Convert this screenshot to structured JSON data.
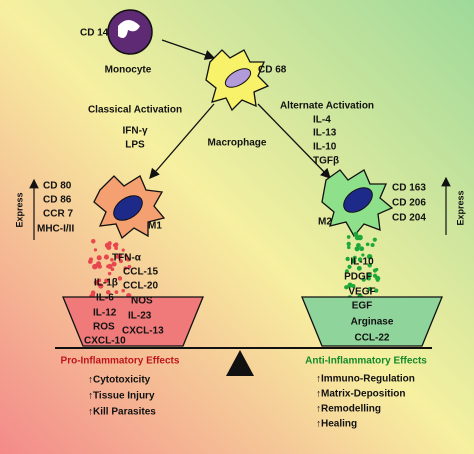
{
  "monocyte": {
    "marker": "CD 14",
    "label": "Monocyte"
  },
  "macrophage": {
    "marker": "CD 68",
    "label": "Macrophage"
  },
  "classical": {
    "title": "Classical Activation",
    "stimuli": [
      "IFN-γ",
      "LPS"
    ]
  },
  "alternate": {
    "title": "Alternate Activation",
    "stimuli": [
      "IL-4",
      "IL-13",
      "IL-10",
      "TGFβ"
    ]
  },
  "m1": {
    "label": "M1",
    "express": "Express",
    "markers": [
      "CD 80",
      "CD 86",
      "CCR 7",
      "MHC-I/II"
    ],
    "secreted": [
      "TFN-α",
      "CCL-15",
      "CCL-20",
      "IL-1β",
      "IL-6",
      "NOS",
      "IL-12",
      "IL-23",
      "ROS",
      "CXCL-13",
      "CXCL-10"
    ],
    "effects_title": "Pro-Inflammatory Effects",
    "effects": [
      "↑Cytotoxicity",
      "↑Tissue Injury",
      "↑Kill Parasites"
    ]
  },
  "m2": {
    "label": "M2",
    "express": "Express",
    "markers": [
      "CD 163",
      "CD 206",
      "CD 204"
    ],
    "secreted": [
      "IL-10",
      "PDGF",
      "VEGF",
      "EGF",
      "Arginase",
      "CCL-22"
    ],
    "effects_title": "Anti-Inflammatory Effects",
    "effects": [
      "↑Immuno-Regulation",
      "↑Matrix-Deposition",
      "↑Remodelling",
      "↑Healing"
    ]
  }
}
